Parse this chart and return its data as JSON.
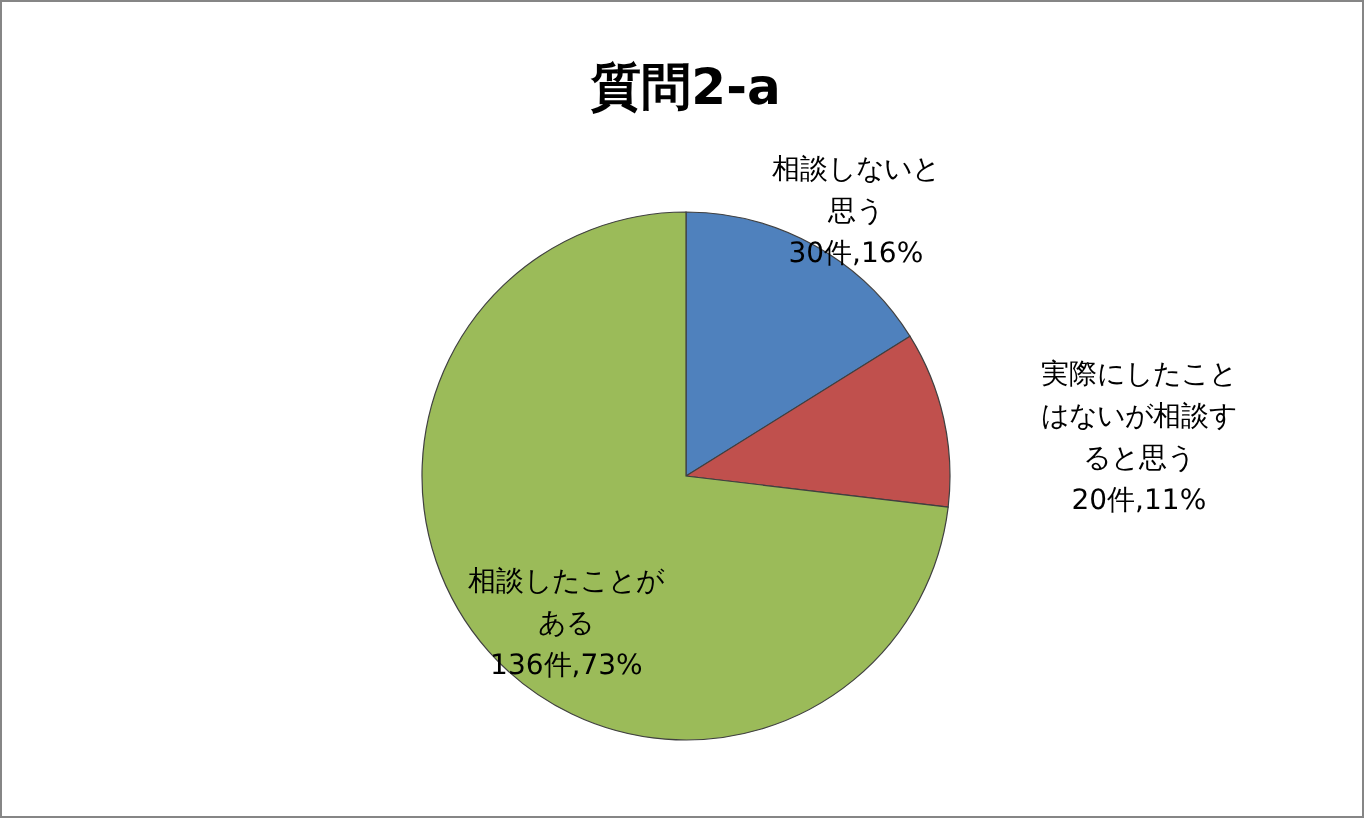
{
  "chart_data": {
    "type": "pie",
    "title": "質問2-a",
    "categories": [
      "相談しないと思う",
      "実際にしたことはないが相談すると思う",
      "相談したことがある"
    ],
    "values": [
      30,
      20,
      136
    ],
    "value_labels": [
      "30件,16%",
      "20件,11%",
      "136件,73%"
    ],
    "colors": [
      "#4f81bd",
      "#c0504d",
      "#9bbb59"
    ],
    "legend": false
  }
}
